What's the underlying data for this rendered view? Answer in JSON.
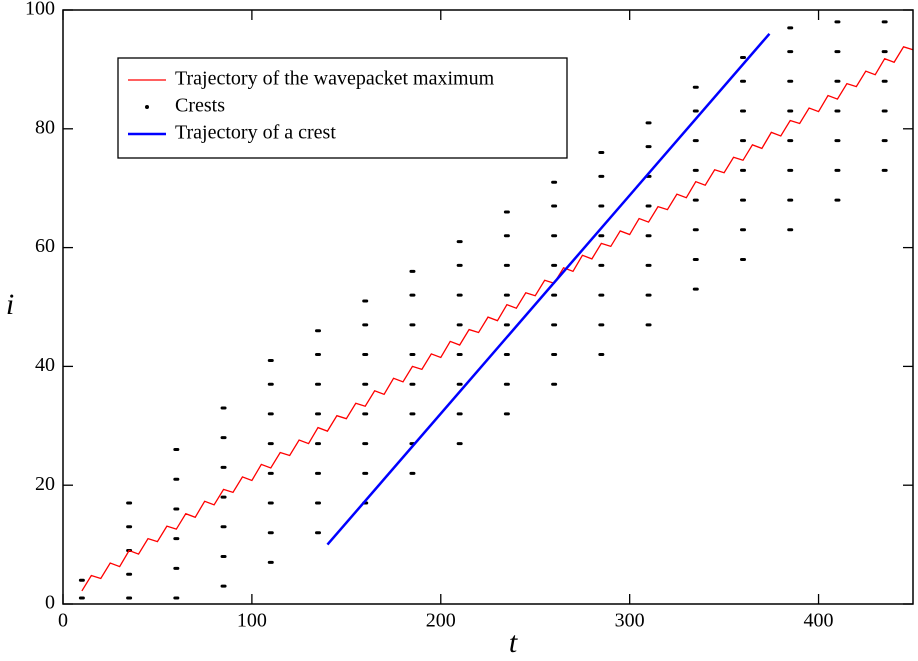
{
  "chart_data": {
    "type": "line",
    "xlabel": "t",
    "ylabel": "i",
    "xlim": [
      0,
      450
    ],
    "ylim": [
      0,
      100
    ],
    "xticks": [
      0,
      100,
      200,
      300,
      400
    ],
    "yticks": [
      0,
      20,
      40,
      60,
      80,
      100
    ],
    "legend": "upper left",
    "series": [
      {
        "name": "Trajectory of the wavepacket maximum",
        "color": "#ff0000",
        "type": "line",
        "x": [
          10,
          15,
          20,
          25,
          30,
          35,
          40,
          45,
          50,
          55,
          60,
          65,
          70,
          75,
          80,
          85,
          90,
          95,
          100,
          105,
          110,
          115,
          120,
          125,
          130,
          135,
          140,
          145,
          150,
          155,
          160,
          165,
          170,
          175,
          180,
          185,
          190,
          195,
          200,
          205,
          210,
          215,
          220,
          225,
          230,
          235,
          240,
          245,
          250,
          255,
          260,
          265,
          270,
          275,
          280,
          285,
          290,
          295,
          300,
          305,
          310,
          315,
          320,
          325,
          330,
          335,
          340,
          345,
          350,
          355,
          360,
          365,
          370,
          375,
          380,
          385,
          390,
          395,
          400,
          405,
          410,
          415,
          420,
          425,
          430,
          435,
          440,
          445,
          450
        ],
        "values": [
          2.2,
          4.8,
          4.3,
          6.9,
          6.3,
          9.0,
          8.4,
          11.0,
          10.5,
          13.1,
          12.6,
          15.2,
          14.6,
          17.3,
          16.7,
          19.3,
          18.8,
          21.4,
          20.8,
          23.5,
          22.9,
          25.5,
          25.0,
          27.6,
          27.0,
          29.7,
          29.1,
          31.7,
          31.2,
          33.8,
          33.3,
          35.9,
          35.3,
          38.0,
          37.4,
          40.0,
          39.5,
          42.1,
          41.5,
          44.2,
          43.6,
          46.2,
          45.7,
          48.3,
          47.7,
          50.4,
          49.8,
          52.4,
          51.9,
          54.5,
          54.0,
          56.6,
          56.0,
          58.7,
          58.1,
          60.7,
          60.2,
          62.8,
          62.2,
          64.9,
          64.3,
          66.9,
          66.4,
          69.0,
          68.4,
          71.1,
          70.5,
          73.1,
          72.6,
          75.2,
          74.7,
          77.3,
          76.7,
          79.4,
          78.8,
          81.4,
          80.9,
          83.5,
          82.9,
          85.6,
          85.0,
          87.6,
          87.1,
          89.7,
          89.1,
          91.8,
          91.2,
          93.8,
          93.3
        ]
      },
      {
        "name": "Crests",
        "color": "#000000",
        "type": "scatter",
        "x": [
          10,
          10,
          35,
          35,
          35,
          35,
          35,
          60,
          60,
          60,
          60,
          60,
          60,
          85,
          85,
          85,
          85,
          85,
          85,
          85,
          110,
          110,
          110,
          110,
          110,
          110,
          110,
          110,
          135,
          135,
          135,
          135,
          135,
          135,
          135,
          135,
          160,
          160,
          160,
          160,
          160,
          160,
          160,
          160,
          185,
          185,
          185,
          185,
          185,
          185,
          185,
          185,
          210,
          210,
          210,
          210,
          210,
          210,
          210,
          210,
          235,
          235,
          235,
          235,
          235,
          235,
          235,
          235,
          260,
          260,
          260,
          260,
          260,
          260,
          260,
          260,
          285,
          285,
          285,
          285,
          285,
          285,
          285,
          285,
          310,
          310,
          310,
          310,
          310,
          310,
          310,
          310,
          335,
          335,
          335,
          335,
          335,
          335,
          335,
          335,
          360,
          360,
          360,
          360,
          360,
          360,
          360,
          360,
          385,
          385,
          385,
          385,
          385,
          385,
          385,
          385,
          410,
          410,
          410,
          410,
          410,
          410,
          410,
          435,
          435,
          435,
          435,
          435,
          435
        ],
        "values": [
          1,
          4,
          1,
          5,
          9,
          13,
          17,
          1,
          6,
          11,
          16,
          21,
          26,
          3,
          8,
          13,
          18,
          23,
          28,
          33,
          7,
          12,
          17,
          22,
          27,
          32,
          37,
          41,
          12,
          17,
          22,
          27,
          32,
          37,
          42,
          46,
          17,
          22,
          27,
          32,
          37,
          42,
          47,
          51,
          22,
          27,
          32,
          37,
          42,
          47,
          52,
          56,
          27,
          32,
          37,
          42,
          47,
          52,
          57,
          61,
          32,
          37,
          42,
          47,
          52,
          57,
          62,
          66,
          37,
          42,
          47,
          52,
          57,
          62,
          67,
          71,
          42,
          47,
          52,
          57,
          62,
          67,
          72,
          76,
          47,
          52,
          57,
          62,
          67,
          72,
          77,
          81,
          53,
          58,
          63,
          68,
          73,
          78,
          83,
          87,
          58,
          63,
          68,
          73,
          78,
          83,
          88,
          92,
          63,
          68,
          73,
          78,
          83,
          88,
          93,
          97,
          68,
          73,
          78,
          83,
          88,
          93,
          98,
          73,
          78,
          83,
          88,
          93,
          98
        ]
      },
      {
        "name": "Trajectory of a crest",
        "color": "#0000ff",
        "type": "line",
        "x": [
          140,
          374
        ],
        "values": [
          10,
          96
        ]
      }
    ]
  }
}
